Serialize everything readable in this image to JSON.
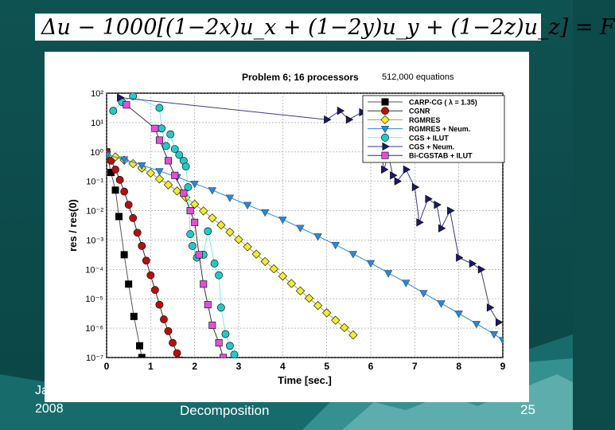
{
  "slide": {
    "equation": "Δu − 1000[(1−2x)u_x + (1−2y)u_y + (1−2z)u_z] = F",
    "footer_left_line1": "Ja",
    "footer_left_line2": "2008",
    "footer_center": "Decomposition",
    "page_number": "25",
    "colors": {
      "background": "#0d4a4a",
      "text": "#ffffff"
    }
  },
  "chart_data": {
    "type": "line",
    "title": "Problem 6;  16 processors",
    "subtitle": "512,000 equations",
    "xlabel": "Time [sec.]",
    "ylabel": "res / res(0)",
    "xlim": [
      0,
      9
    ],
    "ylim_log10": [
      -7,
      2
    ],
    "yscale": "log",
    "x_ticks": [
      0,
      1,
      2,
      3,
      4,
      5,
      6,
      7,
      8,
      9
    ],
    "y_ticks": [
      "10²",
      "10¹",
      "10⁰",
      "10⁻¹",
      "10⁻²",
      "10⁻³",
      "10⁻⁴",
      "10⁻⁵",
      "10⁻⁶",
      "10⁻⁷"
    ],
    "legend_position": "top-right",
    "series": [
      {
        "name": "CARP-CG  ( λ = 1.35)",
        "color": "#000000",
        "line": "#555555",
        "marker": "square",
        "points": [
          [
            0,
            0
          ],
          [
            0.1,
            -0.7
          ],
          [
            0.2,
            -1.3
          ],
          [
            0.28,
            -2.2
          ],
          [
            0.4,
            -3.5
          ],
          [
            0.5,
            -4.5
          ],
          [
            0.62,
            -5.6
          ],
          [
            0.75,
            -6.6
          ],
          [
            0.8,
            -7
          ]
        ]
      },
      {
        "name": "CGNR",
        "color": "#b51010",
        "line": "#333333",
        "marker": "circle",
        "points": [
          [
            0,
            0
          ],
          [
            0.1,
            -0.3
          ],
          [
            0.2,
            -0.6
          ],
          [
            0.3,
            -0.95
          ],
          [
            0.4,
            -1.35
          ],
          [
            0.5,
            -1.8
          ],
          [
            0.6,
            -2.25
          ],
          [
            0.7,
            -2.75
          ],
          [
            0.8,
            -3.2
          ],
          [
            0.9,
            -3.7
          ],
          [
            1.0,
            -4.2
          ],
          [
            1.1,
            -4.7
          ],
          [
            1.2,
            -5.2
          ],
          [
            1.3,
            -5.7
          ],
          [
            1.4,
            -6.1
          ],
          [
            1.5,
            -6.5
          ],
          [
            1.6,
            -6.85
          ],
          [
            1.7,
            -7.1
          ]
        ]
      },
      {
        "name": "RGMRES",
        "color": "#f0ec30",
        "line": "#aaaa22",
        "marker": "diamond",
        "points": [
          [
            0,
            -0.1
          ],
          [
            0.2,
            -0.17
          ],
          [
            0.4,
            -0.28
          ],
          [
            0.6,
            -0.4
          ],
          [
            0.8,
            -0.55
          ],
          [
            1.0,
            -0.72
          ],
          [
            1.2,
            -0.92
          ],
          [
            1.4,
            -1.12
          ],
          [
            1.6,
            -1.33
          ],
          [
            1.8,
            -1.55
          ],
          [
            2.0,
            -1.78
          ],
          [
            2.2,
            -2.01
          ],
          [
            2.4,
            -2.25
          ],
          [
            2.6,
            -2.49
          ],
          [
            2.8,
            -2.73
          ],
          [
            3.0,
            -2.98
          ],
          [
            3.2,
            -3.23
          ],
          [
            3.4,
            -3.48
          ],
          [
            3.6,
            -3.73
          ],
          [
            3.8,
            -3.98
          ],
          [
            4.0,
            -4.23
          ],
          [
            4.2,
            -4.48
          ],
          [
            4.4,
            -4.73
          ],
          [
            4.6,
            -4.98
          ],
          [
            4.8,
            -5.23
          ],
          [
            5.0,
            -5.48
          ],
          [
            5.2,
            -5.73
          ],
          [
            5.4,
            -5.98
          ],
          [
            5.6,
            -6.23
          ]
        ]
      },
      {
        "name": "RGMRES + Neum.",
        "color": "#2f86d8",
        "line": "#2f86d8",
        "marker": "triangle-down",
        "points": [
          [
            0,
            -0.1
          ],
          [
            0.4,
            -0.25
          ],
          [
            0.8,
            -0.45
          ],
          [
            1.2,
            -0.65
          ],
          [
            1.6,
            -0.85
          ],
          [
            2.0,
            -1.08
          ],
          [
            2.4,
            -1.3
          ],
          [
            2.8,
            -1.55
          ],
          [
            3.2,
            -1.8
          ],
          [
            3.6,
            -2.05
          ],
          [
            4.0,
            -2.3
          ],
          [
            4.4,
            -2.58
          ],
          [
            4.8,
            -2.87
          ],
          [
            5.2,
            -3.16
          ],
          [
            5.6,
            -3.47
          ],
          [
            6.0,
            -3.78
          ],
          [
            6.4,
            -4.12
          ],
          [
            6.8,
            -4.45
          ],
          [
            7.2,
            -4.8
          ],
          [
            7.6,
            -5.15
          ],
          [
            8.0,
            -5.5
          ],
          [
            8.4,
            -5.85
          ],
          [
            8.8,
            -6.2
          ],
          [
            9.0,
            -6.4
          ]
        ]
      },
      {
        "name": "CGS + ILUT",
        "color": "#25c8c8",
        "line": "#80e8e8",
        "marker": "circle",
        "points": [
          [
            0.15,
            1.4
          ],
          [
            0.35,
            1.7
          ],
          [
            0.6,
            1.9
          ],
          [
            1.2,
            1.5
          ],
          [
            1.25,
            0.8
          ],
          [
            1.35,
            0.2
          ],
          [
            1.45,
            0.6
          ],
          [
            1.55,
            0.1
          ],
          [
            1.65,
            -0.1
          ],
          [
            1.75,
            -0.3
          ],
          [
            1.8,
            -0.5
          ],
          [
            1.85,
            -1.2
          ],
          [
            1.9,
            -2.8
          ],
          [
            1.95,
            -3.2
          ],
          [
            2.05,
            -3.6
          ],
          [
            2.2,
            -3.5
          ],
          [
            2.3,
            -2.7
          ],
          [
            2.45,
            -3.8
          ],
          [
            2.55,
            -4.2
          ],
          [
            2.6,
            -5.3
          ],
          [
            2.7,
            -6.2
          ],
          [
            2.8,
            -6.6
          ],
          [
            2.9,
            -6.9
          ]
        ]
      },
      {
        "name": "CGS + Neum.",
        "color": "#1a1a6a",
        "line": "#3a3a8a",
        "marker": "triangle-right",
        "points": [
          [
            0.3,
            1.85
          ],
          [
            5.0,
            1.1
          ],
          [
            5.3,
            1.4
          ],
          [
            5.5,
            1.1
          ],
          [
            5.8,
            1.35
          ],
          [
            6.0,
            1.2
          ],
          [
            6.1,
            0.6
          ],
          [
            6.2,
            0.3
          ],
          [
            6.3,
            -0.6
          ],
          [
            6.4,
            -0.1
          ],
          [
            6.5,
            -0.8
          ],
          [
            6.6,
            -1.0
          ],
          [
            6.8,
            -0.6
          ],
          [
            7.0,
            -1.2
          ],
          [
            7.1,
            -2.4
          ],
          [
            7.3,
            -1.6
          ],
          [
            7.5,
            -1.8
          ],
          [
            7.6,
            -2.6
          ],
          [
            7.8,
            -2.0
          ],
          [
            8.0,
            -3.6
          ],
          [
            8.3,
            -3.8
          ],
          [
            8.5,
            -4.0
          ],
          [
            8.7,
            -5.3
          ],
          [
            8.9,
            -5.8
          ]
        ]
      },
      {
        "name": "Bi-CGSTAB + ILUT",
        "color": "#e050d8",
        "line": "#333333",
        "marker": "square",
        "points": [
          [
            0.45,
            1.6
          ],
          [
            1.1,
            0.8
          ],
          [
            1.2,
            0.4
          ],
          [
            1.4,
            -0.3
          ],
          [
            1.55,
            -0.8
          ],
          [
            1.75,
            -1.4
          ],
          [
            1.9,
            -2.0
          ],
          [
            2.0,
            -2.4
          ],
          [
            2.1,
            -3.5
          ],
          [
            2.2,
            -4.5
          ],
          [
            2.3,
            -5.2
          ],
          [
            2.4,
            -5.9
          ],
          [
            2.55,
            -6.5
          ],
          [
            2.65,
            -7.0
          ]
        ]
      }
    ]
  }
}
